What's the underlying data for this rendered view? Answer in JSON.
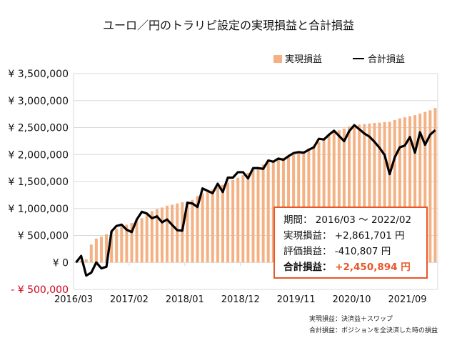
{
  "chart_data": {
    "type": "bar+line",
    "title": "ユーロ／円のトラリピ設定の実現損益と合計損益",
    "ylim": [
      -500000,
      3500000
    ],
    "y_ticks": [
      3500000,
      3000000,
      2500000,
      2000000,
      1500000,
      1000000,
      500000,
      0,
      -500000
    ],
    "y_tick_labels": [
      "¥ 3,500,000",
      "¥ 3,000,000",
      "¥ 2,500,000",
      "¥ 2,000,000",
      "¥ 1,500,000",
      "¥ 1,000,000",
      "¥ 500,000",
      "¥ 0",
      "- ¥ 500,000"
    ],
    "x_tick_labels": [
      "2016/03",
      "2017/02",
      "2018/01",
      "2018/12",
      "2019/11",
      "2020/10",
      "2021/09"
    ],
    "x_tick_interval_months": 11,
    "start_month": "2016/03",
    "end_month": "2022/02",
    "grid": true,
    "legend_position": "top-right",
    "series": [
      {
        "name": "実現損益",
        "kind": "bar",
        "color": "#f4b183",
        "values": [
          0,
          35000,
          60000,
          332000,
          442000,
          478000,
          522000,
          562000,
          620000,
          664000,
          700000,
          730000,
          774000,
          819000,
          885000,
          951000,
          987000,
          1018000,
          1053000,
          1071000,
          1093000,
          1115000,
          1128000,
          1159000,
          1230000,
          1283000,
          1305000,
          1350000,
          1394000,
          1438000,
          1482000,
          1527000,
          1571000,
          1615000,
          1659000,
          1726000,
          1770000,
          1814000,
          1850000,
          1880000,
          1910000,
          1940000,
          1970000,
          2000000,
          2030000,
          2060000,
          2110000,
          2160000,
          2230000,
          2300000,
          2360000,
          2420000,
          2450000,
          2480000,
          2520000,
          2545000,
          2555000,
          2565000,
          2575000,
          2585000,
          2590000,
          2600000,
          2605000,
          2640000,
          2670000,
          2690000,
          2710000,
          2730000,
          2760000,
          2790000,
          2820000,
          2861701
        ]
      },
      {
        "name": "合計損益",
        "kind": "line",
        "color": "#000000",
        "values": [
          0,
          120000,
          -243000,
          -190000,
          0,
          -110000,
          -80000,
          575000,
          677000,
          700000,
          606000,
          562000,
          796000,
          938000,
          907000,
          819000,
          854000,
          743000,
          796000,
          695000,
          597000,
          588000,
          1106000,
          1093000,
          1027000,
          1372000,
          1327000,
          1283000,
          1460000,
          1305000,
          1571000,
          1571000,
          1673000,
          1673000,
          1558000,
          1748000,
          1748000,
          1735000,
          1890000,
          1867000,
          1925000,
          1903000,
          1970000,
          2027000,
          2045000,
          2035000,
          2088000,
          2133000,
          2292000,
          2279000,
          2367000,
          2442000,
          2345000,
          2248000,
          2434000,
          2544000,
          2469000,
          2389000,
          2332000,
          2235000,
          2124000,
          1991000,
          1637000,
          1947000,
          2133000,
          2168000,
          2323000,
          2035000,
          2412000,
          2181000,
          2367000,
          2450894
        ]
      }
    ],
    "negative_label_color": "#d0021b"
  },
  "info_box": {
    "period_label": "期間：",
    "period_value": "2016/03 ～ 2022/02",
    "realized_label": "実現損益：",
    "realized_value": "+2,861,701 円",
    "unrealized_label": "評価損益：",
    "unrealized_value": "-410,807 円",
    "total_label": "合計損益：",
    "total_value": "+2,450,894 円",
    "border_color": "#e8572a"
  },
  "notes": [
    "実現損益：決済益＋スワップ",
    "合計損益：ポジションを全決済した時の損益"
  ]
}
